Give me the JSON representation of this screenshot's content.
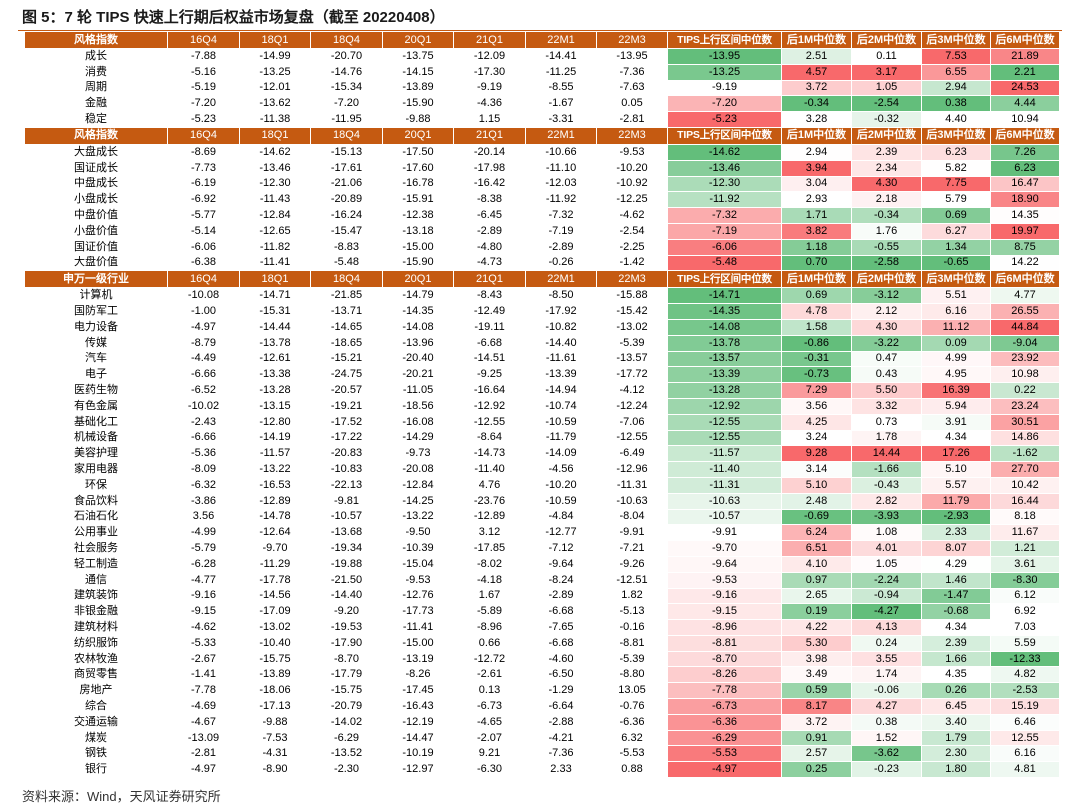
{
  "colors": {
    "header_bg": "#C55A11",
    "header_text": "#FFFFFF",
    "scale_low": "#63BE7B",
    "scale_mid": "#FFFFFF",
    "scale_high": "#F8696B"
  },
  "source": "资料来源：Wind，天风证券研究所",
  "chart_data": {
    "type": "table",
    "title": "图 5：7 轮 TIPS 快速上行期后权益市场复盘（截至 20220408）",
    "columns": [
      "16Q4",
      "18Q1",
      "18Q4",
      "20Q1",
      "21Q1",
      "22M1",
      "22M3",
      "TIPS上行区间中位数",
      "后1M中位数",
      "后2M中位数",
      "后3M中位数",
      "后6M中位数"
    ],
    "sections": [
      {
        "header": "风格指数",
        "rows": [
          {
            "label": "成长",
            "values": [
              -7.88,
              -14.99,
              -20.7,
              -13.75,
              -12.09,
              -14.41,
              -13.95,
              -13.95,
              2.51,
              0.11,
              7.53,
              21.89
            ]
          },
          {
            "label": "消费",
            "values": [
              -5.16,
              -13.25,
              -14.76,
              -14.15,
              -17.3,
              -11.25,
              -7.36,
              -13.25,
              4.57,
              3.17,
              6.55,
              2.21
            ]
          },
          {
            "label": "周期",
            "values": [
              -5.19,
              -12.01,
              -15.34,
              -13.89,
              -9.19,
              -8.55,
              -7.63,
              -9.19,
              3.72,
              1.05,
              2.94,
              24.53
            ]
          },
          {
            "label": "金融",
            "values": [
              -7.2,
              -13.62,
              -7.2,
              -15.9,
              -4.36,
              -1.67,
              0.05,
              -7.2,
              -0.34,
              -2.54,
              0.38,
              4.44
            ]
          },
          {
            "label": "稳定",
            "values": [
              -5.23,
              -11.38,
              -11.95,
              -9.88,
              1.15,
              -3.31,
              -2.81,
              -5.23,
              3.28,
              -0.32,
              4.4,
              10.94
            ]
          }
        ]
      },
      {
        "header": "风格指数",
        "rows": [
          {
            "label": "大盘成长",
            "values": [
              -8.69,
              -14.62,
              -15.13,
              -17.5,
              -20.14,
              -10.66,
              -9.53,
              -14.62,
              2.94,
              2.39,
              6.23,
              7.26
            ]
          },
          {
            "label": "国证成长",
            "values": [
              -7.73,
              -13.46,
              -17.61,
              -17.6,
              -17.98,
              -11.1,
              -10.2,
              -13.46,
              3.94,
              2.34,
              5.82,
              6.23
            ]
          },
          {
            "label": "中盘成长",
            "values": [
              -6.19,
              -12.3,
              -21.06,
              -16.78,
              -16.42,
              -12.03,
              -10.92,
              -12.3,
              3.04,
              4.3,
              7.75,
              16.47
            ]
          },
          {
            "label": "小盘成长",
            "values": [
              -6.92,
              -11.43,
              -20.89,
              -15.91,
              -8.38,
              -11.92,
              -12.25,
              -11.92,
              2.93,
              2.18,
              5.79,
              18.9
            ]
          },
          {
            "label": "中盘价值",
            "values": [
              -5.77,
              -12.84,
              -16.24,
              -12.38,
              -6.45,
              -7.32,
              -4.62,
              -7.32,
              1.71,
              -0.34,
              0.69,
              14.35
            ]
          },
          {
            "label": "小盘价值",
            "values": [
              -5.14,
              -12.65,
              -15.47,
              -13.18,
              -2.89,
              -7.19,
              -2.54,
              -7.19,
              3.82,
              1.76,
              6.27,
              19.97
            ]
          },
          {
            "label": "国证价值",
            "values": [
              -6.06,
              -11.82,
              -8.83,
              -15.0,
              -4.8,
              -2.89,
              -2.25,
              -6.06,
              1.18,
              -0.55,
              1.34,
              8.75
            ]
          },
          {
            "label": "大盘价值",
            "values": [
              -6.38,
              -11.41,
              -5.48,
              -15.9,
              -4.73,
              -0.26,
              -1.42,
              -5.48,
              0.7,
              -2.58,
              -0.65,
              14.22
            ]
          }
        ]
      },
      {
        "header": "申万一级行业",
        "rows": [
          {
            "label": "计算机",
            "values": [
              -10.08,
              -14.71,
              -21.85,
              -14.79,
              -8.43,
              -8.5,
              -15.88,
              -14.71,
              0.69,
              -3.12,
              5.51,
              4.77
            ]
          },
          {
            "label": "国防军工",
            "values": [
              -1.0,
              -15.31,
              -13.71,
              -14.35,
              -12.49,
              -17.92,
              -15.42,
              -14.35,
              4.78,
              2.12,
              6.16,
              26.55
            ]
          },
          {
            "label": "电力设备",
            "values": [
              -4.97,
              -14.44,
              -14.65,
              -14.08,
              -19.11,
              -10.82,
              -13.02,
              -14.08,
              1.58,
              4.3,
              11.12,
              44.84
            ]
          },
          {
            "label": "传媒",
            "values": [
              -8.79,
              -13.78,
              -18.65,
              -13.96,
              -6.68,
              -14.4,
              -5.39,
              -13.78,
              -0.86,
              -3.22,
              0.09,
              -9.04
            ]
          },
          {
            "label": "汽车",
            "values": [
              -4.49,
              -12.61,
              -15.21,
              -20.4,
              -14.51,
              -11.61,
              -13.57,
              -13.57,
              -0.31,
              0.47,
              4.99,
              23.92
            ]
          },
          {
            "label": "电子",
            "values": [
              -6.66,
              -13.38,
              -24.75,
              -20.21,
              -9.25,
              -13.39,
              -17.72,
              -13.39,
              -0.73,
              0.43,
              4.95,
              10.98
            ]
          },
          {
            "label": "医药生物",
            "values": [
              -6.52,
              -13.28,
              -20.57,
              -11.05,
              -16.64,
              -14.94,
              -4.12,
              -13.28,
              7.29,
              5.5,
              16.39,
              0.22
            ]
          },
          {
            "label": "有色金属",
            "values": [
              -10.02,
              -13.15,
              -19.21,
              -18.56,
              -12.92,
              -10.74,
              -12.24,
              -12.92,
              3.56,
              3.32,
              5.94,
              23.24
            ]
          },
          {
            "label": "基础化工",
            "values": [
              -2.43,
              -12.8,
              -17.52,
              -16.08,
              -12.55,
              -10.59,
              -7.06,
              -12.55,
              4.25,
              0.73,
              3.91,
              30.51
            ]
          },
          {
            "label": "机械设备",
            "values": [
              -6.66,
              -14.19,
              -17.22,
              -14.29,
              -8.64,
              -11.79,
              -12.55,
              -12.55,
              3.24,
              1.78,
              4.34,
              14.86
            ]
          },
          {
            "label": "美容护理",
            "values": [
              -5.36,
              -11.57,
              -20.83,
              -9.73,
              -14.73,
              -14.09,
              -6.49,
              -11.57,
              9.28,
              14.44,
              17.26,
              -1.62
            ]
          },
          {
            "label": "家用电器",
            "values": [
              -8.09,
              -13.22,
              -10.83,
              -20.08,
              -11.4,
              -4.56,
              -12.96,
              -11.4,
              3.14,
              -1.66,
              5.1,
              27.7
            ]
          },
          {
            "label": "环保",
            "values": [
              -6.32,
              -16.53,
              -22.13,
              -12.84,
              4.76,
              -10.2,
              -11.31,
              -11.31,
              5.1,
              -0.43,
              5.57,
              10.42
            ]
          },
          {
            "label": "食品饮料",
            "values": [
              -3.86,
              -12.89,
              -9.81,
              -14.25,
              -23.76,
              -10.59,
              -10.63,
              -10.63,
              2.48,
              2.82,
              11.79,
              16.44
            ]
          },
          {
            "label": "石油石化",
            "values": [
              3.56,
              -14.78,
              -10.57,
              -13.22,
              -12.89,
              -4.84,
              -8.04,
              -10.57,
              -0.69,
              -3.93,
              -2.93,
              8.18
            ]
          },
          {
            "label": "公用事业",
            "values": [
              -4.99,
              -12.64,
              -13.68,
              -9.5,
              3.12,
              -12.77,
              -9.91,
              -9.91,
              6.24,
              1.08,
              2.33,
              11.67
            ]
          },
          {
            "label": "社会服务",
            "values": [
              -5.79,
              -9.7,
              -19.34,
              -10.39,
              -17.85,
              -7.12,
              -7.21,
              -9.7,
              6.51,
              4.01,
              8.07,
              1.21
            ]
          },
          {
            "label": "轻工制造",
            "values": [
              -6.28,
              -11.29,
              -19.88,
              -15.04,
              -8.02,
              -9.64,
              -9.26,
              -9.64,
              4.1,
              1.05,
              4.29,
              3.61
            ]
          },
          {
            "label": "通信",
            "values": [
              -4.77,
              -17.78,
              -21.5,
              -9.53,
              -4.18,
              -8.24,
              -12.51,
              -9.53,
              0.97,
              -2.24,
              1.46,
              -8.3
            ]
          },
          {
            "label": "建筑装饰",
            "values": [
              -9.16,
              -14.56,
              -14.4,
              -12.76,
              1.67,
              -2.89,
              1.82,
              -9.16,
              2.65,
              -0.94,
              -1.47,
              6.12
            ]
          },
          {
            "label": "非银金融",
            "values": [
              -9.15,
              -17.09,
              -9.2,
              -17.73,
              -5.89,
              -6.68,
              -5.13,
              -9.15,
              0.19,
              -4.27,
              -0.68,
              6.92
            ]
          },
          {
            "label": "建筑材料",
            "values": [
              -4.62,
              -13.02,
              -19.53,
              -11.41,
              -8.96,
              -7.65,
              -0.16,
              -8.96,
              4.22,
              4.13,
              4.34,
              7.03
            ]
          },
          {
            "label": "纺织服饰",
            "values": [
              -5.33,
              -10.4,
              -17.9,
              -15.0,
              0.66,
              -6.68,
              -8.81,
              -8.81,
              5.3,
              0.24,
              2.39,
              5.59
            ]
          },
          {
            "label": "农林牧渔",
            "values": [
              -2.67,
              -15.75,
              -8.7,
              -13.19,
              -12.72,
              -4.6,
              -5.39,
              -8.7,
              3.98,
              3.55,
              1.66,
              -12.33
            ]
          },
          {
            "label": "商贸零售",
            "values": [
              -1.41,
              -13.89,
              -17.79,
              -8.26,
              -2.61,
              -6.5,
              -8.8,
              -8.26,
              3.49,
              1.74,
              4.35,
              4.82
            ]
          },
          {
            "label": "房地产",
            "values": [
              -7.78,
              -18.06,
              -15.75,
              -17.45,
              0.13,
              -1.29,
              13.05,
              -7.78,
              0.59,
              -0.06,
              0.26,
              -2.53
            ]
          },
          {
            "label": "综合",
            "values": [
              -4.69,
              -17.13,
              -20.79,
              -16.43,
              -6.73,
              -6.64,
              -0.76,
              -6.73,
              8.17,
              4.27,
              6.45,
              15.19
            ]
          },
          {
            "label": "交通运输",
            "values": [
              -4.67,
              -9.88,
              -14.02,
              -12.19,
              -4.65,
              -2.88,
              -6.36,
              -6.36,
              3.72,
              0.38,
              3.4,
              6.46
            ]
          },
          {
            "label": "煤炭",
            "values": [
              -13.09,
              -7.53,
              -6.29,
              -14.47,
              -2.07,
              -4.21,
              6.32,
              -6.29,
              0.91,
              1.52,
              1.79,
              12.55
            ]
          },
          {
            "label": "钢铁",
            "values": [
              -2.81,
              -4.31,
              -13.52,
              -10.19,
              9.21,
              -7.36,
              -5.53,
              -5.53,
              2.57,
              -3.62,
              2.3,
              6.16
            ]
          },
          {
            "label": "银行",
            "values": [
              -4.97,
              -8.9,
              -2.3,
              -12.97,
              -6.3,
              2.33,
              0.88,
              -4.97,
              0.25,
              -0.23,
              1.8,
              4.81
            ]
          }
        ]
      }
    ]
  }
}
